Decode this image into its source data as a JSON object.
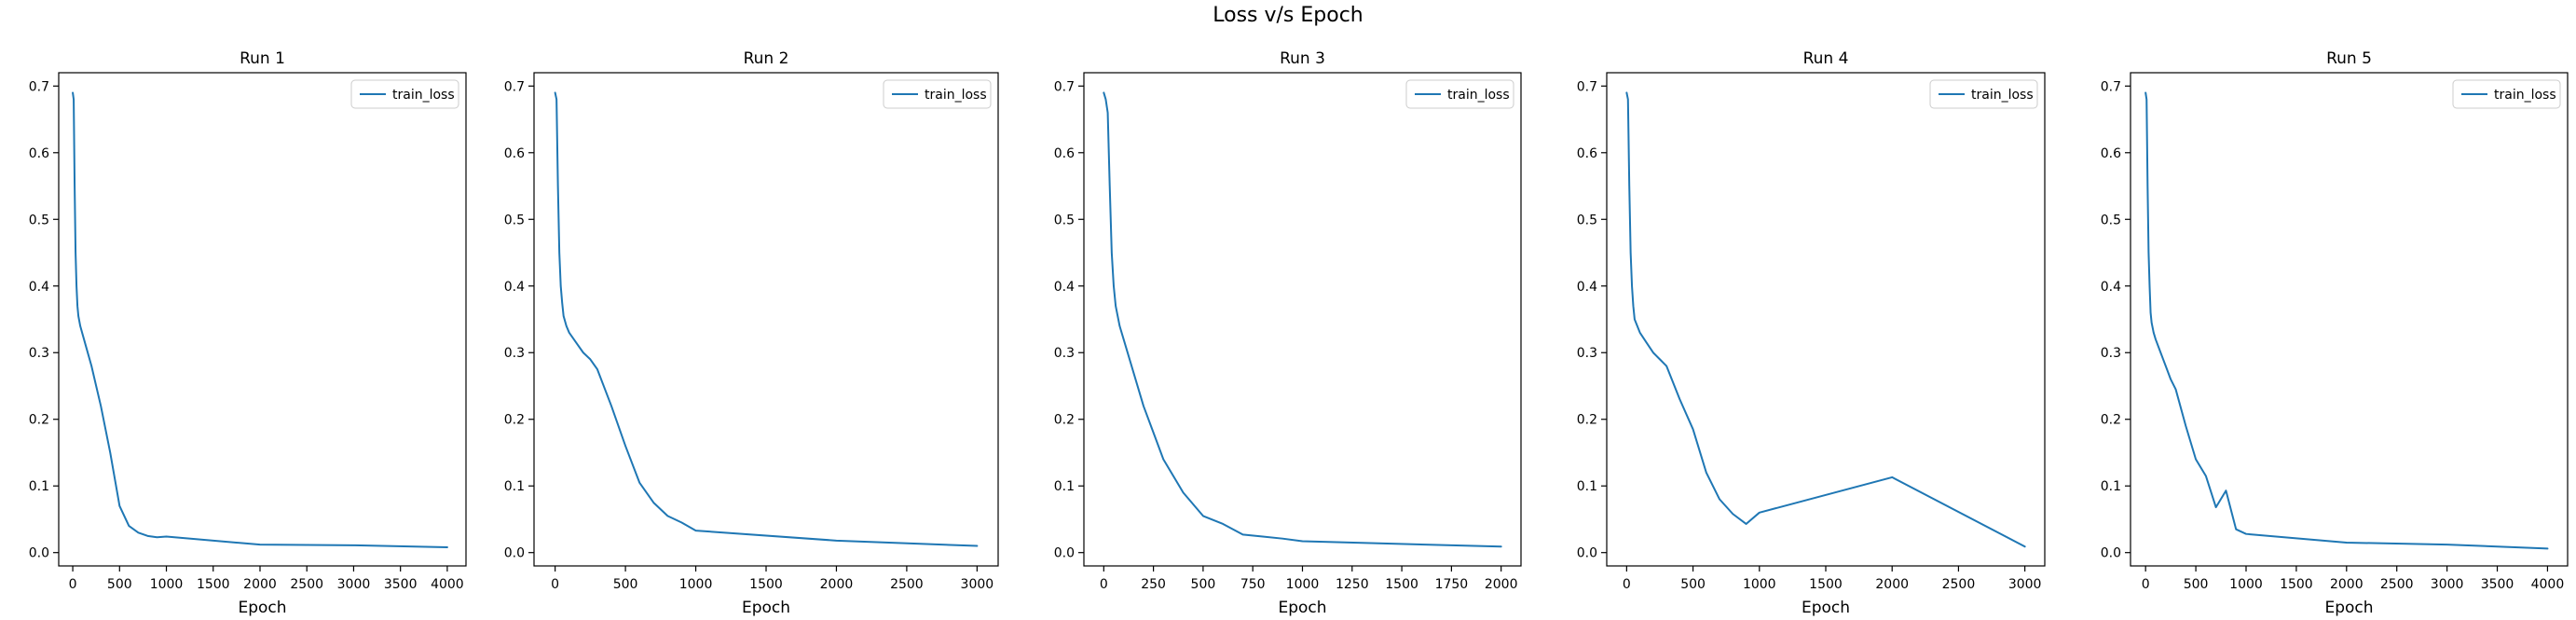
{
  "suptitle": "Loss v/s Epoch",
  "colors": {
    "series": "#1f77b4",
    "axis": "#000000",
    "legend_border": "#cccccc"
  },
  "chart_data": [
    {
      "type": "line",
      "title": "Run 1",
      "xlabel": "Epoch",
      "ylabel": "",
      "xlim": [
        -150,
        4200
      ],
      "ylim": [
        -0.02,
        0.72
      ],
      "xticks": [
        0,
        500,
        1000,
        1500,
        2000,
        2500,
        3000,
        3500,
        4000
      ],
      "yticks": [
        0.0,
        0.1,
        0.2,
        0.3,
        0.4,
        0.5,
        0.6,
        0.7
      ],
      "grid": false,
      "legend": "top-right",
      "series": [
        {
          "name": "train_loss",
          "x": [
            0,
            10,
            20,
            30,
            40,
            50,
            60,
            80,
            100,
            150,
            200,
            250,
            300,
            400,
            500,
            600,
            700,
            800,
            900,
            1000,
            2000,
            3000,
            4000
          ],
          "y": [
            0.69,
            0.68,
            0.55,
            0.45,
            0.4,
            0.37,
            0.355,
            0.34,
            0.33,
            0.305,
            0.28,
            0.25,
            0.22,
            0.15,
            0.07,
            0.04,
            0.03,
            0.025,
            0.023,
            0.024,
            0.012,
            0.011,
            0.008
          ]
        }
      ]
    },
    {
      "type": "line",
      "title": "Run 2",
      "xlabel": "Epoch",
      "ylabel": "",
      "xlim": [
        -150,
        3150
      ],
      "ylim": [
        -0.02,
        0.72
      ],
      "xticks": [
        0,
        500,
        1000,
        1500,
        2000,
        2500,
        3000
      ],
      "yticks": [
        0.0,
        0.1,
        0.2,
        0.3,
        0.4,
        0.5,
        0.6,
        0.7
      ],
      "grid": false,
      "legend": "top-right",
      "series": [
        {
          "name": "train_loss",
          "x": [
            0,
            10,
            20,
            30,
            40,
            50,
            60,
            80,
            100,
            150,
            200,
            250,
            300,
            400,
            500,
            600,
            700,
            800,
            900,
            1000,
            2000,
            3000
          ],
          "y": [
            0.69,
            0.68,
            0.55,
            0.45,
            0.4,
            0.375,
            0.355,
            0.34,
            0.33,
            0.315,
            0.3,
            0.29,
            0.275,
            0.22,
            0.16,
            0.105,
            0.075,
            0.055,
            0.045,
            0.033,
            0.018,
            0.01
          ]
        }
      ]
    },
    {
      "type": "line",
      "title": "Run 3",
      "xlabel": "Epoch",
      "ylabel": "",
      "xlim": [
        -100,
        2100
      ],
      "ylim": [
        -0.02,
        0.72
      ],
      "xticks": [
        0,
        250,
        500,
        750,
        1000,
        1250,
        1500,
        1750,
        2000
      ],
      "yticks": [
        0.0,
        0.1,
        0.2,
        0.3,
        0.4,
        0.5,
        0.6,
        0.7
      ],
      "grid": false,
      "legend": "top-right",
      "series": [
        {
          "name": "train_loss",
          "x": [
            0,
            10,
            20,
            30,
            40,
            50,
            60,
            80,
            100,
            150,
            200,
            250,
            300,
            400,
            500,
            600,
            700,
            800,
            900,
            1000,
            2000
          ],
          "y": [
            0.69,
            0.68,
            0.66,
            0.55,
            0.45,
            0.4,
            0.37,
            0.34,
            0.32,
            0.27,
            0.22,
            0.18,
            0.14,
            0.09,
            0.055,
            0.043,
            0.027,
            0.024,
            0.021,
            0.017,
            0.009
          ]
        }
      ]
    },
    {
      "type": "line",
      "title": "Run 4",
      "xlabel": "Epoch",
      "ylabel": "",
      "xlim": [
        -150,
        3150
      ],
      "ylim": [
        -0.02,
        0.72
      ],
      "xticks": [
        0,
        500,
        1000,
        1500,
        2000,
        2500,
        3000
      ],
      "yticks": [
        0.0,
        0.1,
        0.2,
        0.3,
        0.4,
        0.5,
        0.6,
        0.7
      ],
      "grid": false,
      "legend": "top-right",
      "series": [
        {
          "name": "train_loss",
          "x": [
            0,
            10,
            20,
            30,
            40,
            50,
            60,
            80,
            100,
            150,
            200,
            250,
            300,
            400,
            500,
            600,
            700,
            800,
            900,
            1000,
            2000,
            3000
          ],
          "y": [
            0.69,
            0.68,
            0.55,
            0.45,
            0.4,
            0.37,
            0.35,
            0.34,
            0.33,
            0.315,
            0.3,
            0.29,
            0.28,
            0.23,
            0.185,
            0.12,
            0.08,
            0.058,
            0.043,
            0.06,
            0.113,
            0.009
          ]
        }
      ]
    },
    {
      "type": "line",
      "title": "Run 5",
      "xlabel": "Epoch",
      "ylabel": "",
      "xlim": [
        -150,
        4200
      ],
      "ylim": [
        -0.02,
        0.72
      ],
      "xticks": [
        0,
        500,
        1000,
        1500,
        2000,
        2500,
        3000,
        3500,
        4000
      ],
      "yticks": [
        0.0,
        0.1,
        0.2,
        0.3,
        0.4,
        0.5,
        0.6,
        0.7
      ],
      "grid": false,
      "legend": "top-right",
      "series": [
        {
          "name": "train_loss",
          "x": [
            0,
            10,
            20,
            30,
            40,
            50,
            60,
            80,
            100,
            150,
            200,
            250,
            300,
            400,
            500,
            600,
            700,
            800,
            900,
            1000,
            2000,
            3000,
            4000
          ],
          "y": [
            0.69,
            0.68,
            0.55,
            0.45,
            0.4,
            0.36,
            0.345,
            0.33,
            0.32,
            0.3,
            0.28,
            0.26,
            0.245,
            0.19,
            0.14,
            0.115,
            0.068,
            0.093,
            0.035,
            0.028,
            0.015,
            0.012,
            0.006
          ]
        }
      ]
    }
  ]
}
